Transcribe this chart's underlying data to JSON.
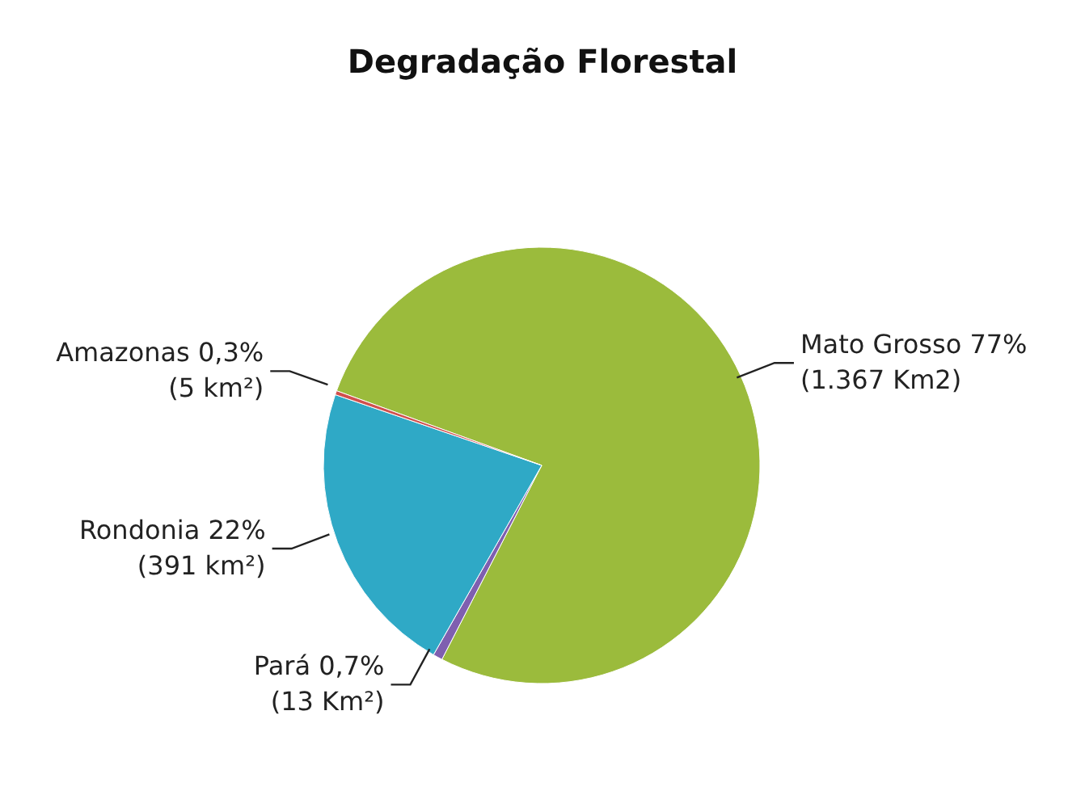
{
  "chart_data": {
    "type": "pie",
    "title": "Degradação Florestal",
    "categories": [
      "Mato Grosso",
      "Pará",
      "Rondonia",
      "Amazonas"
    ],
    "values": [
      77,
      0.7,
      22,
      0.3
    ],
    "value_labels": [
      "77%",
      "0,7%",
      "22%",
      "0,3%"
    ],
    "colors": [
      "#9bbb3c",
      "#7f5fb0",
      "#2fa9c6",
      "#d0504d"
    ],
    "annotations": [
      "(1.367 Km2)",
      "(13 Km²)",
      "(391 km²)",
      "(5 km²)"
    ],
    "legend": false
  }
}
